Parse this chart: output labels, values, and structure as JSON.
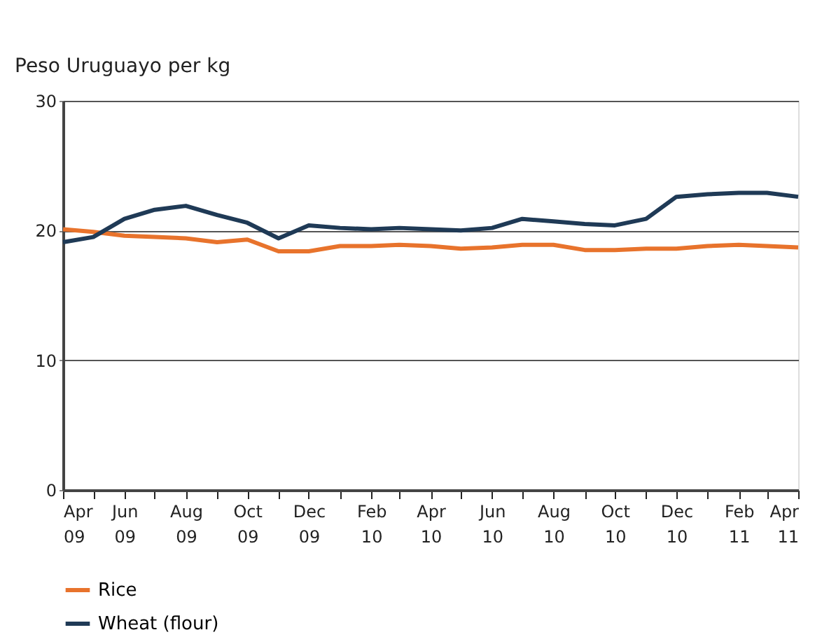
{
  "chart_data": {
    "type": "line",
    "ylabel": "Peso Uruguayo per kg",
    "x": [
      "2009-04",
      "2009-05",
      "2009-06",
      "2009-07",
      "2009-08",
      "2009-09",
      "2009-10",
      "2009-11",
      "2009-12",
      "2010-01",
      "2010-02",
      "2010-03",
      "2010-04",
      "2010-05",
      "2010-06",
      "2010-07",
      "2010-08",
      "2010-09",
      "2010-10",
      "2010-11",
      "2010-12",
      "2011-01",
      "2011-02",
      "2011-03",
      "2011-04"
    ],
    "series": [
      {
        "name": "Rice",
        "color": "#e8732c",
        "values": [
          20.1,
          19.9,
          19.6,
          19.5,
          19.4,
          19.1,
          19.3,
          18.4,
          18.4,
          18.8,
          18.8,
          18.9,
          18.8,
          18.6,
          18.7,
          18.9,
          18.9,
          18.5,
          18.5,
          18.6,
          18.6,
          18.8,
          18.9,
          18.8,
          18.7
        ]
      },
      {
        "name": "Wheat (flour)",
        "color": "#1f3a56",
        "values": [
          19.1,
          19.5,
          20.9,
          21.6,
          21.9,
          21.2,
          20.6,
          19.4,
          20.4,
          20.2,
          20.1,
          20.2,
          20.1,
          20.0,
          20.2,
          20.9,
          20.7,
          20.5,
          20.4,
          20.9,
          22.6,
          22.8,
          22.9,
          22.9,
          22.6
        ]
      }
    ],
    "xlim": [
      "2009-04",
      "2011-04"
    ],
    "xticks": [
      {
        "value": "2009-04",
        "label": "Apr 09"
      },
      {
        "value": "2009-05",
        "label": null
      },
      {
        "value": "2009-06",
        "label": "Jun 09"
      },
      {
        "value": "2009-07",
        "label": null
      },
      {
        "value": "2009-08",
        "label": "Aug 09"
      },
      {
        "value": "2009-09",
        "label": null
      },
      {
        "value": "2009-10",
        "label": "Oct 09"
      },
      {
        "value": "2009-11",
        "label": null
      },
      {
        "value": "2009-12",
        "label": "Dec 09"
      },
      {
        "value": "2010-01",
        "label": null
      },
      {
        "value": "2010-02",
        "label": "Feb 10"
      },
      {
        "value": "2010-03",
        "label": null
      },
      {
        "value": "2010-04",
        "label": "Apr 10"
      },
      {
        "value": "2010-05",
        "label": null
      },
      {
        "value": "2010-06",
        "label": "Jun 10"
      },
      {
        "value": "2010-07",
        "label": null
      },
      {
        "value": "2010-08",
        "label": "Aug 10"
      },
      {
        "value": "2010-09",
        "label": null
      },
      {
        "value": "2010-10",
        "label": "Oct 10"
      },
      {
        "value": "2010-11",
        "label": null
      },
      {
        "value": "2010-12",
        "label": "Dec 10"
      },
      {
        "value": "2011-01",
        "label": null
      },
      {
        "value": "2011-02",
        "label": "Feb 11"
      },
      {
        "value": "2011-03",
        "label": null
      },
      {
        "value": "2011-04",
        "label": "Apr 11"
      }
    ],
    "ylim": [
      0,
      30
    ],
    "yticks": [
      0,
      10,
      20,
      30
    ],
    "grid": "y",
    "legend": "bottom left",
    "marker": "none",
    "line_style": "solid"
  }
}
